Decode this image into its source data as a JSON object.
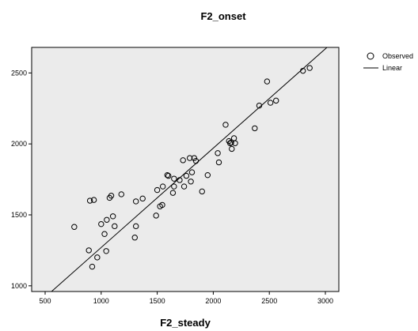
{
  "chart_data": {
    "type": "scatter",
    "title": "F2_onset",
    "xlabel": "F2_steady",
    "ylabel": "",
    "xlim": [
      380,
      3120
    ],
    "ylim": [
      960,
      2680
    ],
    "x_ticks": [
      "500",
      "1000",
      "1500",
      "2000",
      "2500",
      "3000"
    ],
    "y_ticks": [
      "1000",
      "1500",
      "2000",
      "2500"
    ],
    "x_tick_values": [
      500,
      1000,
      1500,
      2000,
      2500,
      3000
    ],
    "y_tick_values": [
      1000,
      1500,
      2000,
      2500
    ],
    "legend": {
      "position": "top-right",
      "observed_label": "Observed",
      "linear_label": "Linear"
    },
    "plot_background": "#ebebeb",
    "grid": false,
    "fit_line": {
      "intercept": 570,
      "slope": 0.7
    },
    "series": [
      {
        "name": "Observed",
        "points": [
          [
            760,
            1415
          ],
          [
            890,
            1250
          ],
          [
            900,
            1600
          ],
          [
            920,
            1135
          ],
          [
            935,
            1605
          ],
          [
            965,
            1200
          ],
          [
            1000,
            1435
          ],
          [
            1030,
            1365
          ],
          [
            1045,
            1245
          ],
          [
            1050,
            1465
          ],
          [
            1075,
            1620
          ],
          [
            1090,
            1635
          ],
          [
            1105,
            1490
          ],
          [
            1120,
            1420
          ],
          [
            1180,
            1645
          ],
          [
            1300,
            1340
          ],
          [
            1310,
            1595
          ],
          [
            1310,
            1420
          ],
          [
            1370,
            1615
          ],
          [
            1490,
            1495
          ],
          [
            1500,
            1675
          ],
          [
            1525,
            1560
          ],
          [
            1545,
            1570
          ],
          [
            1550,
            1700
          ],
          [
            1590,
            1780
          ],
          [
            1600,
            1775
          ],
          [
            1640,
            1655
          ],
          [
            1650,
            1755
          ],
          [
            1650,
            1700
          ],
          [
            1700,
            1745
          ],
          [
            1730,
            1885
          ],
          [
            1740,
            1700
          ],
          [
            1760,
            1775
          ],
          [
            1790,
            1900
          ],
          [
            1800,
            1735
          ],
          [
            1810,
            1800
          ],
          [
            1830,
            1900
          ],
          [
            1845,
            1880
          ],
          [
            1900,
            1665
          ],
          [
            1950,
            1780
          ],
          [
            2040,
            1935
          ],
          [
            2050,
            1870
          ],
          [
            2110,
            2135
          ],
          [
            2140,
            2020
          ],
          [
            2150,
            2005
          ],
          [
            2160,
            2010
          ],
          [
            2165,
            1965
          ],
          [
            2185,
            2040
          ],
          [
            2195,
            2005
          ],
          [
            2370,
            2110
          ],
          [
            2410,
            2270
          ],
          [
            2480,
            2440
          ],
          [
            2510,
            2290
          ],
          [
            2560,
            2305
          ],
          [
            2800,
            2515
          ],
          [
            2860,
            2535
          ]
        ]
      }
    ]
  }
}
